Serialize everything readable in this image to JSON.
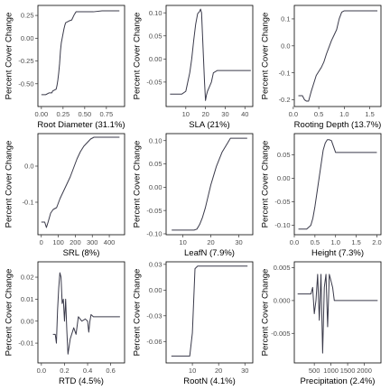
{
  "chart_data": [
    {
      "type": "line",
      "xlabel": "Root Diameter  (31.1%)",
      "ylabel": "Percent Cover Change",
      "xlim": [
        -0.04,
        0.96
      ],
      "ylim": [
        -0.75,
        0.36
      ],
      "x_ticks": [
        0.0,
        0.25,
        0.5,
        0.75
      ],
      "x_tick_labels": [
        "0.00",
        "0.25",
        "0.50",
        "0.75"
      ],
      "y_ticks": [
        -0.5,
        -0.25,
        0.0,
        0.25
      ],
      "y_tick_labels": [
        "-0.50",
        "-0.25",
        "0.00",
        "0.25"
      ],
      "x": [
        0.0,
        0.05,
        0.09,
        0.12,
        0.13,
        0.15,
        0.17,
        0.18,
        0.19,
        0.2,
        0.21,
        0.22,
        0.23,
        0.24,
        0.25,
        0.26,
        0.27,
        0.28,
        0.3,
        0.32,
        0.35,
        0.38,
        0.4,
        0.5,
        0.6,
        0.7,
        0.8,
        0.9
      ],
      "y": [
        -0.62,
        -0.62,
        -0.6,
        -0.6,
        -0.58,
        -0.57,
        -0.56,
        -0.52,
        -0.46,
        -0.38,
        -0.28,
        -0.14,
        -0.05,
        0.0,
        0.05,
        0.1,
        0.14,
        0.17,
        0.18,
        0.19,
        0.2,
        0.26,
        0.29,
        0.29,
        0.29,
        0.3,
        0.3,
        0.3
      ]
    },
    {
      "type": "line",
      "xlabel": "SLA  (21%)",
      "ylabel": "Percent Cover Change",
      "xlim": [
        0,
        44
      ],
      "ylim": [
        -0.103,
        0.116
      ],
      "x_ticks": [
        10,
        20,
        30,
        40
      ],
      "x_tick_labels": [
        "10",
        "20",
        "30",
        "40"
      ],
      "y_ticks": [
        -0.05,
        0.0,
        0.05,
        0.1
      ],
      "y_tick_labels": [
        "-0.05",
        "0.00",
        "0.05",
        "0.10"
      ],
      "x": [
        2,
        8,
        10,
        11,
        12,
        13,
        14,
        15,
        16,
        17,
        17.5,
        18,
        18.5,
        19,
        19.5,
        20,
        20.5,
        21,
        22,
        23,
        24,
        26,
        30,
        35,
        40,
        43
      ],
      "y": [
        -0.076,
        -0.076,
        -0.07,
        -0.05,
        -0.03,
        0.0,
        0.04,
        0.075,
        0.098,
        0.103,
        0.108,
        0.1,
        0.05,
        0.0,
        -0.05,
        -0.09,
        -0.078,
        -0.07,
        -0.06,
        -0.05,
        -0.03,
        -0.025,
        -0.025,
        -0.025,
        -0.025,
        -0.025
      ]
    },
    {
      "type": "line",
      "xlabel": "Rooting Depth  (13.7%)",
      "ylabel": "Percent Cover Change",
      "xlim": [
        0.02,
        1.72
      ],
      "ylim": [
        -0.225,
        0.15
      ],
      "x_ticks": [
        0.0,
        0.5,
        1.0,
        1.5
      ],
      "x_tick_labels": [
        "0.0",
        "0.5",
        "1.0",
        "1.5"
      ],
      "y_ticks": [
        -0.2,
        -0.1,
        0.0,
        0.1
      ],
      "y_tick_labels": [
        "-0.2",
        "-0.1",
        "0.0",
        "0.1"
      ],
      "x": [
        0.1,
        0.18,
        0.22,
        0.26,
        0.3,
        0.35,
        0.4,
        0.45,
        0.5,
        0.55,
        0.6,
        0.65,
        0.7,
        0.75,
        0.8,
        0.85,
        0.9,
        0.95,
        1.0,
        1.05,
        1.2,
        1.4,
        1.65
      ],
      "y": [
        -0.185,
        -0.185,
        -0.2,
        -0.205,
        -0.205,
        -0.17,
        -0.14,
        -0.11,
        -0.095,
        -0.08,
        -0.06,
        -0.03,
        -0.005,
        0.02,
        0.04,
        0.06,
        0.1,
        0.125,
        0.13,
        0.13,
        0.13,
        0.13,
        0.13
      ]
    },
    {
      "type": "line",
      "xlabel": "SRL  (8%)",
      "ylabel": "Percent Cover Change",
      "xlim": [
        -20,
        490
      ],
      "ylim": [
        -0.19,
        0.09
      ],
      "x_ticks": [
        0,
        100,
        200,
        300,
        400
      ],
      "x_tick_labels": [
        "0",
        "100",
        "200",
        "300",
        "400"
      ],
      "y_ticks": [
        -0.1,
        0.0
      ],
      "y_tick_labels": [
        "-0.1",
        "0.0"
      ],
      "x": [
        0,
        20,
        30,
        40,
        55,
        70,
        90,
        110,
        130,
        150,
        170,
        190,
        210,
        230,
        250,
        270,
        290,
        310,
        340,
        380,
        420,
        460
      ],
      "y": [
        -0.155,
        -0.155,
        -0.17,
        -0.155,
        -0.13,
        -0.12,
        -0.115,
        -0.09,
        -0.07,
        -0.05,
        -0.03,
        -0.005,
        0.02,
        0.04,
        0.055,
        0.065,
        0.075,
        0.08,
        0.08,
        0.08,
        0.08,
        0.08
      ]
    },
    {
      "type": "line",
      "xlabel": "LeafN  (7.9%)",
      "ylabel": "Percent Cover Change",
      "xlim": [
        4,
        35
      ],
      "ylim": [
        -0.102,
        0.115
      ],
      "x_ticks": [
        10,
        20,
        30
      ],
      "x_tick_labels": [
        "10",
        "20",
        "30"
      ],
      "y_ticks": [
        -0.1,
        -0.05,
        0.0,
        0.05,
        0.1
      ],
      "y_tick_labels": [
        "-0.10",
        "-0.05",
        "0.00",
        "0.05",
        "0.10"
      ],
      "x": [
        6,
        10,
        14,
        15,
        16,
        17,
        18,
        19,
        20,
        21,
        22,
        23,
        24,
        25,
        26,
        27,
        28,
        30,
        33
      ],
      "y": [
        -0.092,
        -0.092,
        -0.092,
        -0.09,
        -0.08,
        -0.065,
        -0.045,
        -0.02,
        0.005,
        0.025,
        0.045,
        0.06,
        0.075,
        0.085,
        0.095,
        0.105,
        0.105,
        0.105,
        0.105
      ]
    },
    {
      "type": "line",
      "xlabel": "Height  (7.3%)",
      "ylabel": "Percent Cover Change",
      "xlim": [
        0.0,
        2.1
      ],
      "ylim": [
        -0.12,
        0.095
      ],
      "x_ticks": [
        0.0,
        0.5,
        1.0,
        1.5,
        2.0
      ],
      "x_tick_labels": [
        "0.0",
        "0.5",
        "1.0",
        "1.5",
        "2.0"
      ],
      "y_ticks": [
        -0.1,
        -0.05,
        0.0,
        0.05
      ],
      "y_tick_labels": [
        "-0.10",
        "-0.05",
        "0.00",
        "0.05"
      ],
      "x": [
        0.1,
        0.3,
        0.4,
        0.45,
        0.5,
        0.55,
        0.6,
        0.65,
        0.7,
        0.75,
        0.8,
        0.85,
        0.9,
        1.0,
        1.1,
        1.3,
        1.6,
        2.0
      ],
      "y": [
        -0.108,
        -0.108,
        -0.1,
        -0.085,
        -0.06,
        -0.03,
        0.0,
        0.03,
        0.06,
        0.075,
        0.082,
        0.082,
        0.08,
        0.055,
        0.055,
        0.055,
        0.055,
        0.055
      ]
    },
    {
      "type": "line",
      "xlabel": "RTD  (4.5%)",
      "ylabel": "Percent Cover Change",
      "xlim": [
        -0.03,
        0.72
      ],
      "ylim": [
        -0.019,
        0.027
      ],
      "x_ticks": [
        0.0,
        0.2,
        0.4,
        0.6
      ],
      "x_tick_labels": [
        "0.0",
        "0.2",
        "0.4",
        "0.6"
      ],
      "y_ticks": [
        -0.01,
        0.0,
        0.01,
        0.02
      ],
      "y_tick_labels": [
        "-0.01",
        "0.00",
        "0.01",
        "0.02"
      ],
      "x": [
        0.1,
        0.12,
        0.13,
        0.14,
        0.15,
        0.16,
        0.17,
        0.18,
        0.19,
        0.2,
        0.21,
        0.22,
        0.23,
        0.25,
        0.28,
        0.3,
        0.32,
        0.35,
        0.38,
        0.4,
        0.41,
        0.42,
        0.43,
        0.45,
        0.5,
        0.55,
        0.6,
        0.68
      ],
      "y": [
        -0.006,
        -0.006,
        -0.01,
        0.005,
        0.015,
        0.022,
        0.02,
        0.008,
        0.01,
        0.0,
        0.01,
        -0.004,
        -0.015,
        -0.008,
        -0.003,
        -0.006,
        0.002,
        0.0,
        0.001,
        0.0,
        -0.005,
        0.0,
        0.003,
        0.002,
        0.002,
        0.002,
        0.002,
        0.002
      ]
    },
    {
      "type": "line",
      "xlabel": "RootN  (4.1%)",
      "ylabel": "Percent Cover Change",
      "xlim": [
        0,
        33
      ],
      "ylim": [
        -0.085,
        0.033
      ],
      "x_ticks": [
        10,
        20,
        30
      ],
      "x_tick_labels": [
        "10",
        "20",
        "30"
      ],
      "y_ticks": [
        -0.06,
        -0.03,
        0.0,
        0.03
      ],
      "y_tick_labels": [
        "-0.06",
        "-0.03",
        "0.00",
        "0.03"
      ],
      "x": [
        2,
        6,
        9,
        10,
        11,
        12,
        13,
        15,
        20,
        25,
        31
      ],
      "y": [
        -0.077,
        -0.077,
        -0.077,
        -0.05,
        0.025,
        0.028,
        0.028,
        0.028,
        0.028,
        0.028,
        0.028
      ]
    },
    {
      "type": "line",
      "xlabel": "Precipitation  (2.4%)",
      "ylabel": "Percent Cover Change",
      "xlim": [
        -100,
        2500
      ],
      "ylim": [
        -0.0095,
        0.0059
      ],
      "x_ticks": [
        500,
        1000,
        1500,
        2000
      ],
      "x_tick_labels": [
        "500",
        "1000",
        "1500",
        "2000"
      ],
      "y_ticks": [
        -0.005,
        0.0,
        0.005
      ],
      "y_tick_labels": [
        "-0.005",
        "0.000",
        "0.005"
      ],
      "x": [
        0,
        50,
        100,
        200,
        300,
        400,
        450,
        500,
        550,
        600,
        650,
        700,
        750,
        800,
        850,
        900,
        950,
        1000,
        1050,
        1100,
        1200,
        1600,
        2000,
        2400
      ],
      "y": [
        0.001,
        0.001,
        0.001,
        0.001,
        0.001,
        0.001,
        0.002,
        -0.002,
        0.0,
        0.004,
        -0.003,
        0.004,
        -0.008,
        0.002,
        0.004,
        -0.004,
        0.004,
        0.003,
        0.002,
        0.0,
        0.0,
        0.0,
        0.0,
        0.0
      ]
    }
  ]
}
